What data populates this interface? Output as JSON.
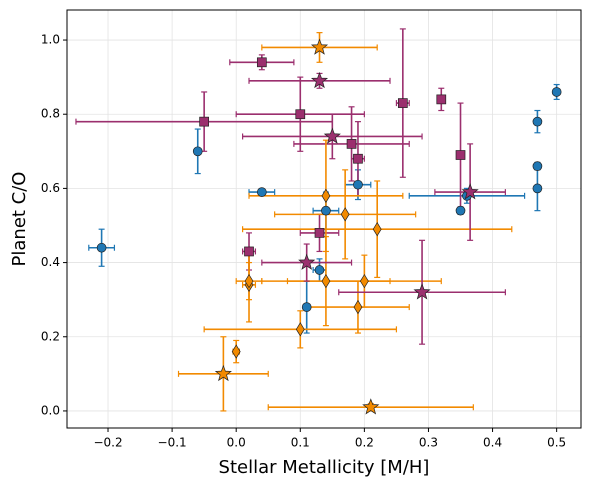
{
  "chart_data": {
    "type": "scatter",
    "x_label": "Stellar Metallicity [M/H]",
    "y_label": "Planet C/O",
    "xlim": [
      -0.264,
      0.538
    ],
    "ylim": [
      -0.046,
      1.081
    ],
    "xticks": [
      {
        "value": -0.2,
        "label": "−0.2"
      },
      {
        "value": -0.1,
        "label": "−0.1"
      },
      {
        "value": 0,
        "label": "0.0"
      },
      0.1,
      0.2,
      0.3,
      0.4,
      0.5
    ],
    "yticks": [
      {
        "value": 0,
        "label": "0.0"
      },
      0.2,
      0.4,
      0.6,
      0.8,
      {
        "value": 1,
        "label": "1.0"
      }
    ],
    "grid": true,
    "series": [
      {
        "color": "#1f77b4",
        "marker": "circle",
        "x": [
          -0.21,
          -0.06,
          0.04,
          0.11,
          0.13,
          0.14,
          0.19,
          0.35,
          0.36,
          0.47,
          0.47,
          0.47,
          0.5
        ],
        "values": [
          0.44,
          0.7,
          0.59,
          0.28,
          0.38,
          0.54,
          0.61,
          0.54,
          0.58,
          0.78,
          0.66,
          0.6,
          0.86
        ],
        "xerr": [
          0.02,
          0.005,
          0.02,
          0.005,
          0.01,
          0.02,
          0.02,
          0.005,
          0.09,
          0.005,
          0.005,
          0.005,
          0.005
        ],
        "yerr": [
          0.05,
          0.06,
          0.005,
          0.07,
          0.03,
          0.05,
          0.04,
          0.01,
          0.02,
          0.03,
          0.01,
          0.06,
          0.02
        ]
      },
      {
        "color": "#9b2f6e",
        "marker": "square",
        "x": [
          -0.05,
          0.04,
          0.02,
          0.1,
          0.13,
          0.18,
          0.19,
          0.26,
          0.32,
          0.35
        ],
        "values": [
          0.78,
          0.94,
          0.43,
          0.8,
          0.48,
          0.72,
          0.68,
          0.83,
          0.84,
          0.69
        ],
        "xerr": [
          0.2,
          0.05,
          0.01,
          0.1,
          0.03,
          0.09,
          0.01,
          0.01,
          0.005,
          0.005
        ],
        "yerr": [
          0.08,
          0.02,
          0.05,
          0.1,
          0.05,
          0.1,
          0.1,
          0.2,
          0.03,
          0.14
        ]
      },
      {
        "color": "#f28a00",
        "marker": "diamond",
        "x": [
          0.0,
          0.02,
          0.02,
          0.1,
          0.14,
          0.14,
          0.17,
          0.19,
          0.2,
          0.22
        ],
        "values": [
          0.16,
          0.34,
          0.35,
          0.22,
          0.35,
          0.58,
          0.53,
          0.28,
          0.35,
          0.49
        ],
        "xerr": [
          0.005,
          0.01,
          0.02,
          0.15,
          0.1,
          0.12,
          0.11,
          0.08,
          0.12,
          0.21
        ],
        "yerr": [
          0.03,
          0.1,
          0.05,
          0.05,
          0.12,
          0.15,
          0.12,
          0.07,
          0.07,
          0.13
        ]
      },
      {
        "color": "#f28a00",
        "marker": "star",
        "x": [
          -0.02,
          0.13,
          0.21
        ],
        "values": [
          0.1,
          0.98,
          0.01
        ],
        "xerr": [
          0.07,
          0.09,
          0.16
        ],
        "yerr": [
          0.1,
          0.04,
          0.01
        ]
      },
      {
        "color": "#9b2f6e",
        "marker": "star",
        "x": [
          0.11,
          0.13,
          0.15,
          0.29,
          0.365
        ],
        "values": [
          0.4,
          0.89,
          0.74,
          0.32,
          0.59
        ],
        "xerr": [
          0.07,
          0.11,
          0.14,
          0.13,
          0.055
        ],
        "yerr": [
          0.05,
          0.02,
          0.06,
          0.14,
          0.13
        ]
      }
    ]
  }
}
